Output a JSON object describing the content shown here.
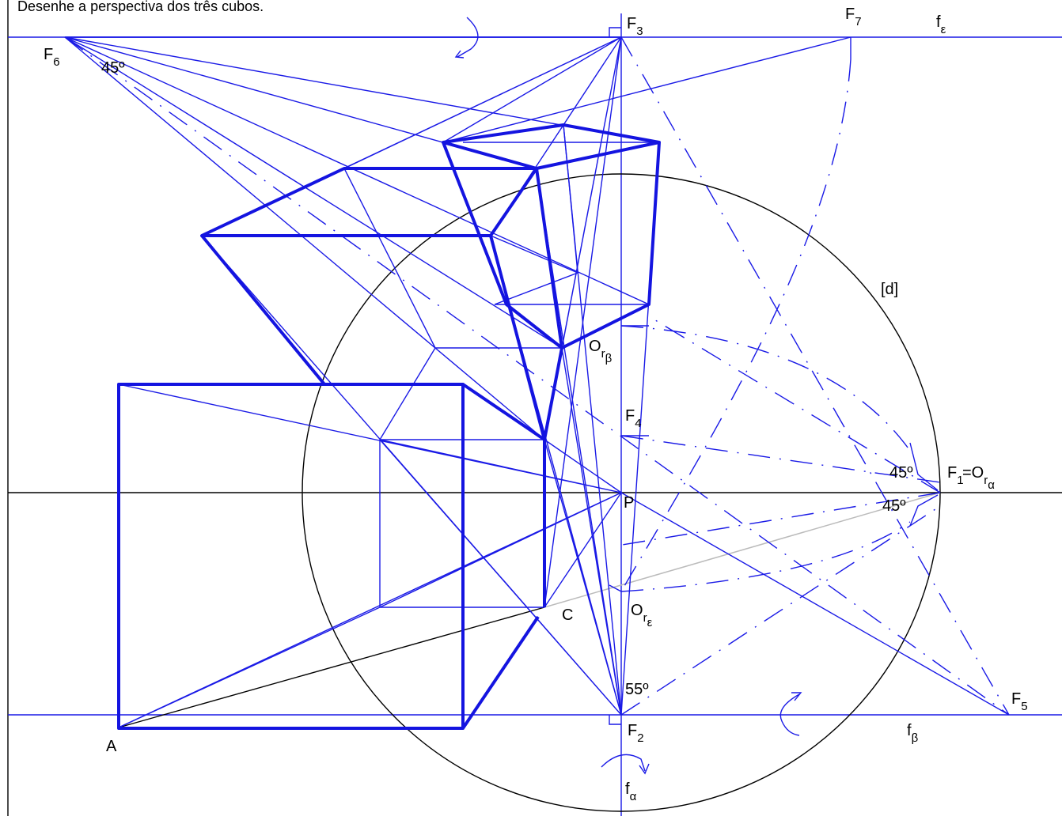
{
  "title": "Desenhe a perspectiva dos três cubos.",
  "labels": [
    {
      "base": "F",
      "sub": "3"
    },
    {
      "base": "F",
      "sub": "7"
    },
    {
      "base": "f",
      "sub": "ε"
    },
    {
      "base": "F",
      "sub": "6"
    },
    {
      "base": "45º"
    },
    {
      "base": "[d]"
    },
    {
      "base": "O",
      "sub": "r",
      "sub2": "β"
    },
    {
      "base": "F",
      "sub": "4"
    },
    {
      "base": "45º"
    },
    {
      "base": "F",
      "sub": "1"
    },
    {
      "base": "=O",
      "sub": "r",
      "sub2": "α"
    },
    {
      "base": "45º"
    },
    {
      "base": "P"
    },
    {
      "base": "C"
    },
    {
      "base": "O",
      "sub": "r",
      "sub2": "ε"
    },
    {
      "base": "55º"
    },
    {
      "base": "F",
      "sub": "5"
    },
    {
      "base": "F",
      "sub": "2"
    },
    {
      "base": "f",
      "sub": "β"
    },
    {
      "base": "A"
    },
    {
      "base": "f",
      "sub": "α"
    }
  ]
}
